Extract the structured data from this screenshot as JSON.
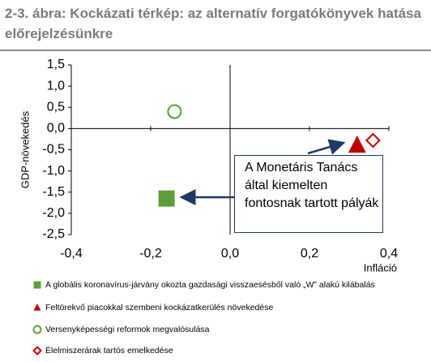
{
  "chart_data": {
    "type": "scatter",
    "title": "2-3. ábra: Kockázati térkép: az alternatív forgatókönyvek hatása előrejelzésünkre",
    "x_label": "Infláció",
    "y_label": "GDP-növekedés",
    "annotation": "A Monetáris Tanács által kiemelten fontosnak tartott pályák",
    "xlim": [
      -0.4,
      0.4
    ],
    "xticks": [
      {
        "value": -0.4,
        "label": "-0,4"
      },
      {
        "value": -0.2,
        "label": "-0,2"
      },
      {
        "value": 0,
        "label": "0,0"
      },
      {
        "value": 0.2,
        "label": "0,2"
      },
      {
        "value": 0.4,
        "label": "0,4"
      }
    ],
    "ylim": [
      -2.5,
      1.5
    ],
    "yticks": [
      {
        "value": 1.5,
        "label": "1,5"
      },
      {
        "value": 1,
        "label": "1,0"
      },
      {
        "value": 0.5,
        "label": "0,5"
      },
      {
        "value": 0,
        "label": "0,0"
      },
      {
        "value": -0.5,
        "label": "-0,5"
      },
      {
        "value": -1,
        "label": "-1,0"
      },
      {
        "value": -1.5,
        "label": "-1,5"
      },
      {
        "value": -2,
        "label": "-2,0"
      },
      {
        "value": -2.5,
        "label": "-2,5"
      }
    ],
    "series": [
      {
        "name": "A globális koronavírus-járvány okozta gazdasági visszaesésből való „W” alakú kilábalás",
        "color": "#5b9e3a",
        "marker": "square",
        "filled": true,
        "x": [
          -0.16
        ],
        "values": [
          -1.65
        ]
      },
      {
        "name": "Feltörekvő piacokkal szembeni kockázatkerülés növekedése",
        "color": "#c00000",
        "marker": "triangle",
        "filled": true,
        "x": [
          0.32
        ],
        "values": [
          -0.4
        ]
      },
      {
        "name": "Versenyképességi reformok megvalósulása",
        "color": "#5b9e3a",
        "marker": "circle",
        "filled": false,
        "x": [
          -0.14
        ],
        "values": [
          0.4
        ]
      },
      {
        "name": "Élelmiszerárak tartós emelkedése",
        "color": "#c00000",
        "marker": "diamond",
        "filled": false,
        "x": [
          0.36
        ],
        "values": [
          -0.28
        ]
      }
    ]
  }
}
